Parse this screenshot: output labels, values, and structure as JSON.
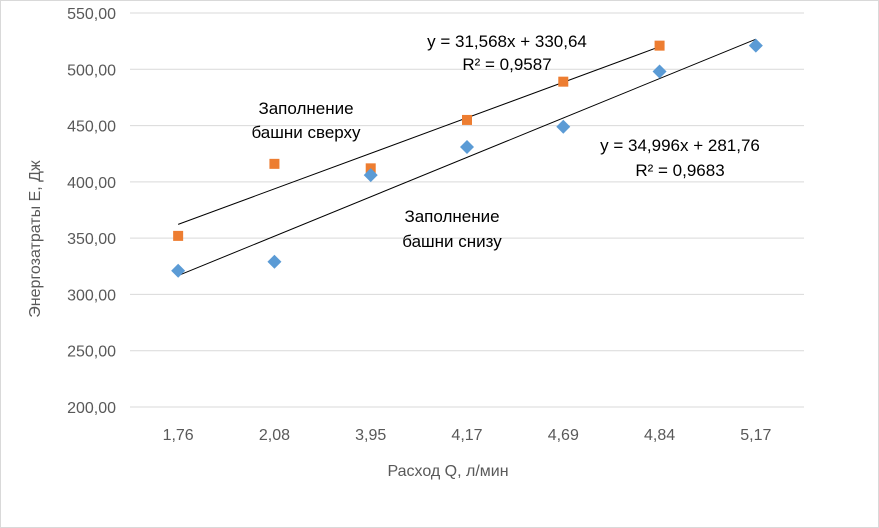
{
  "chart_data": {
    "type": "scatter",
    "categories": [
      "1,76",
      "2,08",
      "3,95",
      "4,17",
      "4,69",
      "4,84",
      "5,17"
    ],
    "xlabel": "Расход Q, л/мин",
    "ylabel": "Энергозатраты Е, Дж",
    "ylim": [
      200,
      550
    ],
    "yticks": [
      "200,00",
      "250,00",
      "300,00",
      "350,00",
      "400,00",
      "450,00",
      "500,00",
      "550,00"
    ],
    "grid": true,
    "series": [
      {
        "name": "Заполнение башни сверху",
        "marker": "square",
        "color": "#ED7D31",
        "values": [
          352,
          416,
          412,
          455,
          489,
          521,
          null
        ],
        "trendline": {
          "slope": 31.568,
          "intercept": 330.64,
          "equation": "y = 31,568x + 330,64",
          "r2": "R² = 0,9587"
        }
      },
      {
        "name": "Заполнение башни снизу",
        "marker": "diamond",
        "color": "#5B9BD5",
        "values": [
          321,
          329,
          406,
          431,
          449,
          498,
          521
        ],
        "trendline": {
          "slope": 34.996,
          "intercept": 281.76,
          "equation": "y = 34,996x + 281,76",
          "r2": "R² = 0,9683"
        }
      }
    ],
    "annotations": {
      "top_label_line1": "Заполнение",
      "top_label_line2": "башни сверху",
      "bottom_label_line1": "Заполнение",
      "bottom_label_line2": "башни снизу"
    }
  }
}
